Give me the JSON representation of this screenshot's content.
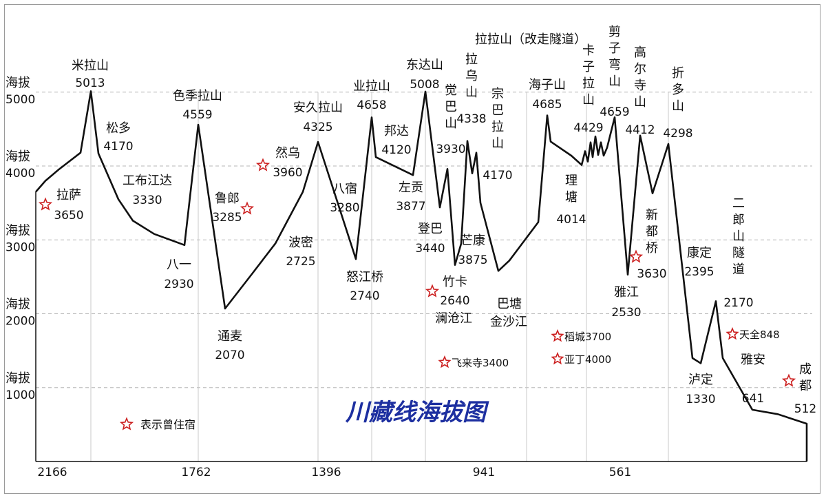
{
  "chart_data": {
    "type": "line",
    "title": "川藏线海拔图",
    "legend": {
      "symbol": "☆",
      "text": "表示曾住宿",
      "color": "#cc1f1f"
    },
    "y_labels": [
      {
        "text1": "海拔",
        "text2": "5000"
      },
      {
        "text1": "海拔",
        "text2": "4000"
      },
      {
        "text1": "海拔",
        "text2": "3000"
      },
      {
        "text1": "海拔",
        "text2": "2000"
      },
      {
        "text1": "海拔",
        "text2": "1000"
      }
    ],
    "x_labels": [
      "2166",
      "1762",
      "1396",
      "941",
      "561"
    ],
    "profile": [
      [
        52,
        3650
      ],
      [
        66,
        3800
      ],
      [
        85,
        3950
      ],
      [
        117,
        4180
      ],
      [
        132,
        5013
      ],
      [
        143,
        4170
      ],
      [
        172,
        3550
      ],
      [
        193,
        3260
      ],
      [
        224,
        3080
      ],
      [
        268,
        2930
      ],
      [
        288,
        4559
      ],
      [
        327,
        2070
      ],
      [
        367,
        2550
      ],
      [
        400,
        2950
      ],
      [
        440,
        3650
      ],
      [
        462,
        4325
      ],
      [
        517,
        2740
      ],
      [
        540,
        4658
      ],
      [
        546,
        4120
      ],
      [
        600,
        3877
      ],
      [
        618,
        5008
      ],
      [
        639,
        3440
      ],
      [
        650,
        3960
      ],
      [
        661,
        2660
      ],
      [
        670,
        2950
      ],
      [
        679,
        4338
      ],
      [
        686,
        3900
      ],
      [
        692,
        4180
      ],
      [
        698,
        3500
      ],
      [
        724,
        2580
      ],
      [
        740,
        2720
      ],
      [
        782,
        3240
      ],
      [
        795,
        4685
      ],
      [
        800,
        4330
      ],
      [
        830,
        4140
      ],
      [
        845,
        4014
      ],
      [
        850,
        4200
      ],
      [
        854,
        4060
      ],
      [
        858,
        4320
      ],
      [
        861,
        4120
      ],
      [
        865,
        4400
      ],
      [
        869,
        4150
      ],
      [
        873,
        4320
      ],
      [
        877,
        4140
      ],
      [
        882,
        4250
      ],
      [
        893,
        4659
      ],
      [
        912,
        2530
      ],
      [
        930,
        4412
      ],
      [
        948,
        3630
      ],
      [
        971,
        4298
      ],
      [
        1006,
        1400
      ],
      [
        1018,
        1330
      ],
      [
        1040,
        2170
      ],
      [
        1050,
        1400
      ],
      [
        1093,
        700
      ],
      [
        1130,
        641
      ],
      [
        1172,
        512
      ],
      [
        1172,
        0
      ]
    ],
    "places": [
      {
        "name": "拉萨",
        "alt": "3650",
        "stay": true
      },
      {
        "name": "米拉山",
        "alt": "5013"
      },
      {
        "name": "松多",
        "alt": "4170"
      },
      {
        "name": "工布江达",
        "alt": "3330"
      },
      {
        "name": "八一",
        "alt": "2930"
      },
      {
        "name": "色季拉山",
        "alt": "4559"
      },
      {
        "name": "鲁郎",
        "alt": "3285",
        "stay": true
      },
      {
        "name": "通麦",
        "alt": "2070"
      },
      {
        "name": "然乌",
        "alt": "3960",
        "stay": true
      },
      {
        "name": "波密",
        "alt": "2725"
      },
      {
        "name": "安久拉山",
        "alt": "4325"
      },
      {
        "name": "八宿",
        "alt": "3280"
      },
      {
        "name": "怒江桥",
        "alt": "2740"
      },
      {
        "name": "业拉山",
        "alt": "4658"
      },
      {
        "name": "邦达",
        "alt": "4120"
      },
      {
        "name": "左贡",
        "alt": "3877"
      },
      {
        "name": "东达山",
        "alt": "5008"
      },
      {
        "name": "觉巴山",
        "alt": "3930"
      },
      {
        "name": "登巴",
        "alt": "3440"
      },
      {
        "name": "竹卡",
        "alt": "2640",
        "stay": true
      },
      {
        "name": "澜沧江",
        "alt": ""
      },
      {
        "name": "芒康",
        "alt": "3875"
      },
      {
        "name": "拉乌山",
        "alt": "4338"
      },
      {
        "name": "宗巴拉山",
        "alt": "4170"
      },
      {
        "name": "巴塘",
        "alt": "2580"
      },
      {
        "name": "金沙江",
        "alt": ""
      },
      {
        "name": "拉拉山（改走隧道）",
        "alt": ""
      },
      {
        "name": "海子山",
        "alt": "4685"
      },
      {
        "name": "理塘",
        "alt": "4014"
      },
      {
        "name": "卡子拉山",
        "alt": "4429"
      },
      {
        "name": "剪子弯山",
        "alt": "4659"
      },
      {
        "name": "高尔寺山",
        "alt": "4412"
      },
      {
        "name": "新都桥",
        "alt": "3630",
        "stay": true
      },
      {
        "name": "雅江",
        "alt": "2530"
      },
      {
        "name": "折多山",
        "alt": "4298"
      },
      {
        "name": "康定",
        "alt": "2395"
      },
      {
        "name": "泸定",
        "alt": "1330"
      },
      {
        "name": "二郎山隧道",
        "alt": "2170"
      },
      {
        "name": "雅安",
        "alt": "641"
      },
      {
        "name": "成都",
        "alt": "512",
        "stay": true
      }
    ],
    "side_notes": [
      {
        "text": "飞来寺3400",
        "stay": true
      },
      {
        "text": "稻城3700",
        "stay": true
      },
      {
        "text": "亚丁4000",
        "stay": true
      },
      {
        "text": "天全848",
        "stay": true
      }
    ],
    "ylim": [
      0,
      5500
    ],
    "grid": true
  },
  "colors": {
    "line": "#111111",
    "grid": "#b5b5b5",
    "star": "#cc1f1f",
    "title": "#1d2fa0"
  }
}
